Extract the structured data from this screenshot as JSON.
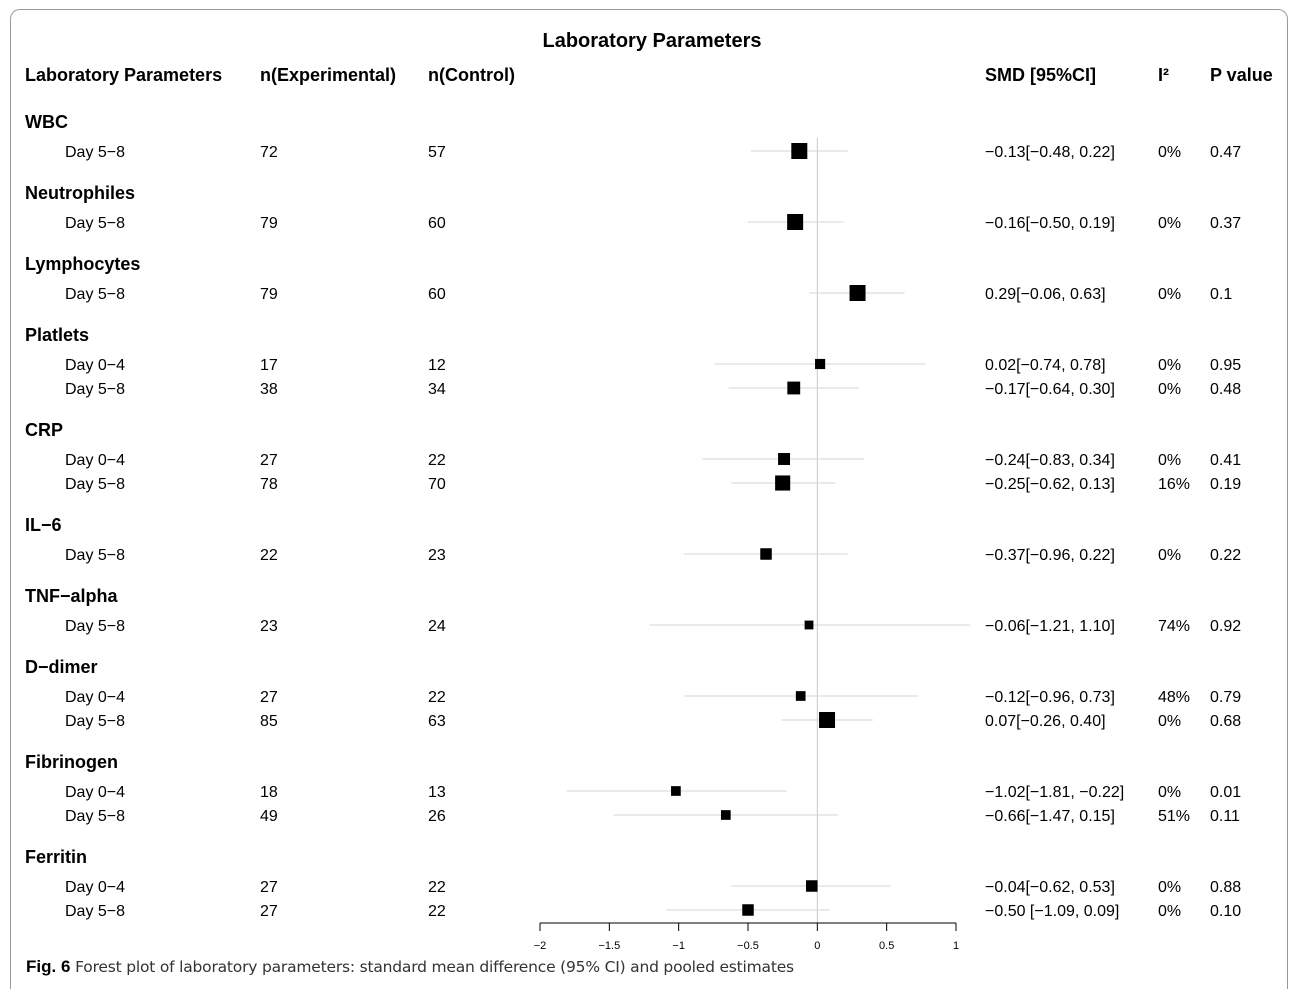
{
  "chart_data": {
    "type": "forest",
    "title": "Laboratory Parameters",
    "columns": [
      "Laboratory Parameters",
      "n(Experimental)",
      "n(Control)",
      "SMD [95%CI]",
      "I²",
      "P value"
    ],
    "xlim": [
      -2,
      1
    ],
    "x_ticks": [
      "−2",
      "−1.5",
      "−1",
      "−0.5",
      "0",
      "0.5",
      "1"
    ],
    "groups": [
      {
        "name": "WBC",
        "rows": [
          {
            "label": "Day 5−8",
            "n_exp": "72",
            "n_ctrl": "57",
            "smd": -0.13,
            "lo": -0.48,
            "hi": 0.22,
            "ci_text": "−0.13[−0.48, 0.22]",
            "i2": "0%",
            "p": "0.47",
            "weight": 1.0
          }
        ]
      },
      {
        "name": "Neutrophiles",
        "rows": [
          {
            "label": "Day 5−8",
            "n_exp": "79",
            "n_ctrl": "60",
            "smd": -0.16,
            "lo": -0.5,
            "hi": 0.19,
            "ci_text": "−0.16[−0.50, 0.19]",
            "i2": "0%",
            "p": "0.37",
            "weight": 1.0
          }
        ]
      },
      {
        "name": "Lymphocytes",
        "rows": [
          {
            "label": "Day 5−8",
            "n_exp": "79",
            "n_ctrl": "60",
            "smd": 0.29,
            "lo": -0.06,
            "hi": 0.63,
            "ci_text": "0.29[−0.06, 0.63]",
            "i2": "0%",
            "p": "0.1",
            "weight": 1.0
          }
        ]
      },
      {
        "name": "Platlets",
        "rows": [
          {
            "label": "Day 0−4",
            "n_exp": "17",
            "n_ctrl": "12",
            "smd": 0.02,
            "lo": -0.74,
            "hi": 0.78,
            "ci_text": "0.02[−0.74, 0.78]",
            "i2": "0%",
            "p": "0.95",
            "weight": 0.35
          },
          {
            "label": "Day 5−8",
            "n_exp": "38",
            "n_ctrl": "34",
            "smd": -0.17,
            "lo": -0.64,
            "hi": 0.3,
            "ci_text": "−0.17[−0.64, 0.30]",
            "i2": "0%",
            "p": "0.48",
            "weight": 0.65
          }
        ]
      },
      {
        "name": "CRP",
        "rows": [
          {
            "label": "Day 0−4",
            "n_exp": "27",
            "n_ctrl": "22",
            "smd": -0.24,
            "lo": -0.83,
            "hi": 0.34,
            "ci_text": "−0.24[−0.83, 0.34]",
            "i2": "0%",
            "p": "0.41",
            "weight": 0.55
          },
          {
            "label": "Day 5−8",
            "n_exp": "78",
            "n_ctrl": "70",
            "smd": -0.25,
            "lo": -0.62,
            "hi": 0.13,
            "ci_text": "−0.25[−0.62, 0.13]",
            "i2": "16%",
            "p": "0.19",
            "weight": 0.9
          }
        ]
      },
      {
        "name": "IL−6",
        "rows": [
          {
            "label": "Day 5−8",
            "n_exp": "22",
            "n_ctrl": "23",
            "smd": -0.37,
            "lo": -0.96,
            "hi": 0.22,
            "ci_text": "−0.37[−0.96, 0.22]",
            "i2": "0%",
            "p": "0.22",
            "weight": 0.5
          }
        ]
      },
      {
        "name": "TNF−alpha",
        "rows": [
          {
            "label": "Day 5−8",
            "n_exp": "23",
            "n_ctrl": "24",
            "smd": -0.06,
            "lo": -1.21,
            "hi": 1.1,
            "ci_text": "−0.06[−1.21, 1.10]",
            "i2": "74%",
            "p": "0.92",
            "weight": 0.2
          }
        ]
      },
      {
        "name": "D−dimer",
        "rows": [
          {
            "label": "Day 0−4",
            "n_exp": "27",
            "n_ctrl": "22",
            "smd": -0.12,
            "lo": -0.96,
            "hi": 0.73,
            "ci_text": "−0.12[−0.96, 0.73]",
            "i2": "48%",
            "p": "0.79",
            "weight": 0.3
          },
          {
            "label": "Day 5−8",
            "n_exp": "85",
            "n_ctrl": "63",
            "smd": 0.07,
            "lo": -0.26,
            "hi": 0.4,
            "ci_text": "0.07[−0.26, 0.40]",
            "i2": "0%",
            "p": "0.68",
            "weight": 1.0
          }
        ]
      },
      {
        "name": "Fibrinogen",
        "rows": [
          {
            "label": "Day 0−4",
            "n_exp": "18",
            "n_ctrl": "13",
            "smd": -1.02,
            "lo": -1.81,
            "hi": -0.22,
            "ci_text": "−1.02[−1.81, −0.22]",
            "i2": "0%",
            "p": "0.01",
            "weight": 0.3
          },
          {
            "label": "Day 5−8",
            "n_exp": "49",
            "n_ctrl": "26",
            "smd": -0.66,
            "lo": -1.47,
            "hi": 0.15,
            "ci_text": "−0.66[−1.47, 0.15]",
            "i2": "51%",
            "p": "0.11",
            "weight": 0.3
          }
        ]
      },
      {
        "name": "Ferritin",
        "rows": [
          {
            "label": "Day 0−4",
            "n_exp": "27",
            "n_ctrl": "22",
            "smd": -0.04,
            "lo": -0.62,
            "hi": 0.53,
            "ci_text": "−0.04[−0.62, 0.53]",
            "i2": "0%",
            "p": "0.88",
            "weight": 0.5
          },
          {
            "label": "Day 5−8",
            "n_exp": "27",
            "n_ctrl": "22",
            "smd": -0.5,
            "lo": -1.09,
            "hi": 0.09,
            "ci_text": "−0.50 [−1.09, 0.09]",
            "i2": "0%",
            "p": "0.10",
            "weight": 0.5
          }
        ]
      }
    ],
    "colors": {
      "box": "#000000",
      "ci_line": "#d6d6d6",
      "ref_line": "#c8c8c8",
      "axis": "#000000"
    }
  },
  "caption": {
    "label": "Fig. 6",
    "text": "Forest plot of laboratory parameters: standard mean difference (95% CI) and pooled estimates"
  }
}
